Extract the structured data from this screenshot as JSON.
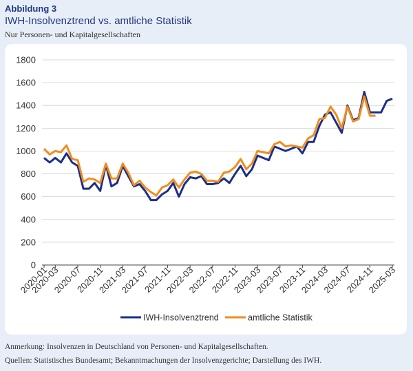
{
  "header": {
    "label": "Abbildung 3",
    "title": "IWH-Insolvenztrend vs. amtliche Statistik",
    "subtitle": "Nur Personen- und Kapitalgesellschaften"
  },
  "footer": {
    "note": "Anmerkung: Insolvenzen in Deutschland von Personen- und Kapitalgesellschaften.",
    "sources": "Quellen: Statistisches Bundesamt; Bekanntmachungen der Insolvenzgerichte; Darstellung des IWH."
  },
  "colors": {
    "iwh": "#1a2f8a",
    "amtlich": "#f28c1e",
    "grid": "#d9d9d9",
    "axis": "#444444"
  },
  "chart_data": {
    "type": "line",
    "title": "IWH-Insolvenztrend vs. amtliche Statistik",
    "xlabel": "",
    "ylabel": "",
    "ylim": [
      0,
      1800
    ],
    "yticks": [
      0,
      200,
      400,
      600,
      800,
      1000,
      1200,
      1400,
      1600,
      1800
    ],
    "grid": true,
    "legend_position": "bottom",
    "x": [
      "2020-01",
      "2020-02",
      "2020-03",
      "2020-04",
      "2020-05",
      "2020-06",
      "2020-07",
      "2020-08",
      "2020-09",
      "2020-10",
      "2020-11",
      "2020-12",
      "2021-01",
      "2021-02",
      "2021-03",
      "2021-04",
      "2021-05",
      "2021-06",
      "2021-07",
      "2021-08",
      "2021-09",
      "2021-10",
      "2021-11",
      "2021-12",
      "2022-01",
      "2022-02",
      "2022-03",
      "2022-04",
      "2022-05",
      "2022-06",
      "2022-07",
      "2022-08",
      "2022-09",
      "2022-10",
      "2022-11",
      "2022-12",
      "2023-01",
      "2023-02",
      "2023-03",
      "2023-04",
      "2023-05",
      "2023-06",
      "2023-07",
      "2023-08",
      "2023-09",
      "2023-10",
      "2023-11",
      "2023-12",
      "2024-01",
      "2024-02",
      "2024-03",
      "2024-04",
      "2024-05",
      "2024-06",
      "2024-07",
      "2024-08",
      "2024-09",
      "2024-10",
      "2024-11",
      "2024-12",
      "2025-01",
      "2025-02",
      "2025-03"
    ],
    "x_tick_labels": [
      "2020-01",
      "2020-03",
      "2020-07",
      "2020-11",
      "2021-03",
      "2021-07",
      "2021-11",
      "2022-03",
      "2022-07",
      "2022-11",
      "2023-03",
      "2023-07",
      "2023-11",
      "2024-03",
      "2024-07",
      "2024-11",
      "2025-03"
    ],
    "series": [
      {
        "name": "IWH-Insolvenztrend",
        "values": [
          940,
          900,
          940,
          900,
          980,
          900,
          870,
          670,
          670,
          720,
          650,
          880,
          690,
          720,
          870,
          780,
          690,
          710,
          650,
          570,
          570,
          620,
          650,
          720,
          600,
          710,
          770,
          760,
          780,
          710,
          710,
          720,
          760,
          720,
          800,
          870,
          780,
          840,
          960,
          940,
          920,
          1040,
          1020,
          1000,
          1020,
          1040,
          980,
          1080,
          1080,
          1220,
          1320,
          1340,
          1250,
          1160,
          1400,
          1270,
          1290,
          1520,
          1340,
          1340,
          1340,
          1440,
          1460
        ]
      },
      {
        "name": "amtliche Statistik",
        "values": [
          1020,
          970,
          1000,
          990,
          1050,
          930,
          920,
          730,
          760,
          750,
          720,
          890,
          760,
          760,
          890,
          810,
          700,
          740,
          680,
          640,
          610,
          680,
          700,
          750,
          680,
          750,
          810,
          820,
          800,
          740,
          740,
          730,
          810,
          820,
          860,
          930,
          840,
          890,
          1000,
          990,
          980,
          1060,
          1080,
          1040,
          1050,
          1040,
          1030,
          1110,
          1140,
          1280,
          1290,
          1390,
          1320,
          1200,
          1390,
          1260,
          1280,
          1480,
          1310,
          1310,
          null,
          null,
          null
        ]
      }
    ]
  }
}
